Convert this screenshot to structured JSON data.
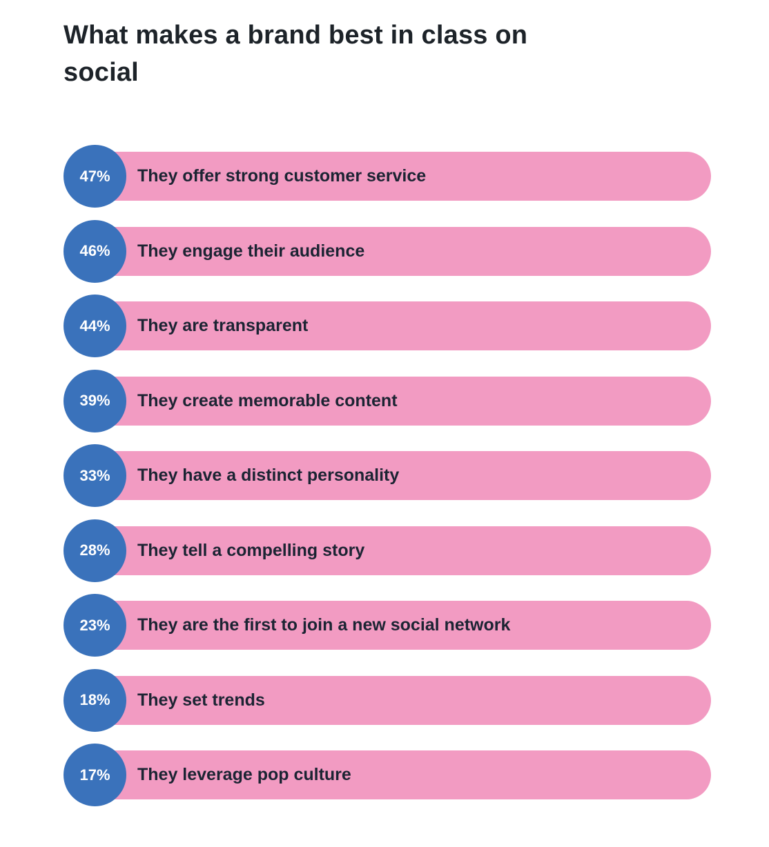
{
  "chart_data": {
    "type": "bar",
    "title": "What makes a brand best in class on social",
    "categories": [
      "They offer strong customer service",
      "They engage their audience",
      "They are transparent",
      "They create memorable content",
      "They have a distinct personality",
      "They tell a compelling story",
      "They are the first to join a new social network",
      "They set trends",
      "They leverage pop culture"
    ],
    "values": [
      47,
      46,
      44,
      39,
      33,
      28,
      23,
      18,
      17
    ],
    "value_labels": [
      "47%",
      "46%",
      "44%",
      "39%",
      "33%",
      "28%",
      "23%",
      "18%",
      "17%"
    ],
    "unit": "%",
    "orientation": "horizontal",
    "colors": {
      "badge": "#3a72bb",
      "bar": "#f29bc2",
      "label_text": "#1c2433",
      "badge_text": "#ffffff",
      "title_text": "#1d2329"
    }
  }
}
